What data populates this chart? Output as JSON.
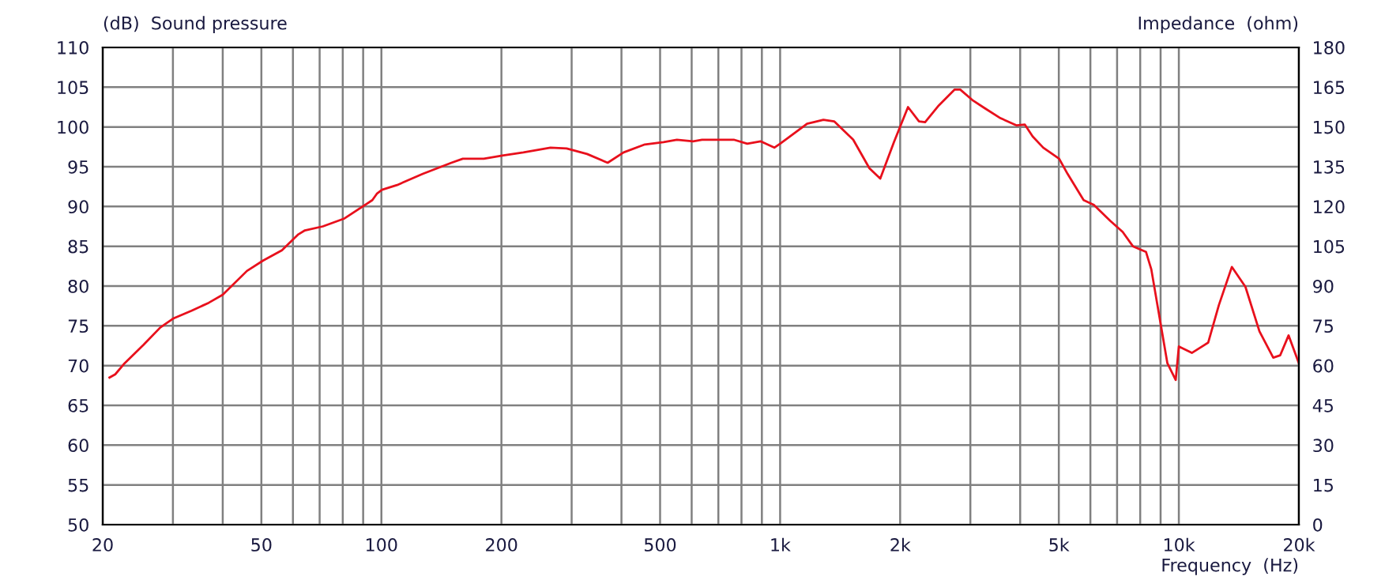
{
  "chart_data": {
    "type": "line",
    "ylabel": "(dB)  Sound pressure",
    "y2label": "Impedance  (ohm)",
    "xlabel": "Frequency  (Hz)",
    "log": "x",
    "grid": true,
    "legend": false,
    "xlim": [
      20,
      20000
    ],
    "ylim": [
      50,
      110
    ],
    "y2lim": [
      0,
      180
    ],
    "xticks": [
      20,
      {
        "value": 30,
        "label": null
      },
      {
        "value": 40,
        "label": null
      },
      50,
      {
        "value": 60,
        "label": null
      },
      {
        "value": 70,
        "label": null
      },
      {
        "value": 80,
        "label": null
      },
      {
        "value": 90,
        "label": null
      },
      100,
      200,
      {
        "value": 300,
        "label": null
      },
      {
        "value": 400,
        "label": null
      },
      500,
      {
        "value": 600,
        "label": null
      },
      {
        "value": 700,
        "label": null
      },
      {
        "value": 800,
        "label": null
      },
      {
        "value": 900,
        "label": null
      },
      {
        "value": 1000,
        "label": "1k"
      },
      {
        "value": 2000,
        "label": "2k"
      },
      {
        "value": 3000,
        "label": null
      },
      {
        "value": 4000,
        "label": null
      },
      {
        "value": 5000,
        "label": "5k"
      },
      {
        "value": 6000,
        "label": null
      },
      {
        "value": 7000,
        "label": null
      },
      {
        "value": 8000,
        "label": null
      },
      {
        "value": 9000,
        "label": null
      },
      {
        "value": 10000,
        "label": "10k"
      },
      {
        "value": 20000,
        "label": "20k"
      }
    ],
    "yticks": [
      50,
      55,
      60,
      65,
      70,
      75,
      80,
      85,
      90,
      95,
      100,
      105,
      110
    ],
    "y2ticks": [
      0,
      15,
      30,
      45,
      60,
      75,
      90,
      105,
      120,
      135,
      150,
      165,
      180
    ],
    "series": [
      {
        "color": "#e8101c",
        "x": [
          20.8,
          21.5,
          22.7,
          25.3,
          27.9,
          30,
          33.4,
          36.9,
          40,
          46,
          50.5,
          56.3,
          61.9,
          64.3,
          71.3,
          80.8,
          94.9,
          97.4,
          100.4,
          109.5,
          127,
          149.8,
          160,
          180.6,
          201,
          227,
          265.5,
          291.4,
          328,
          369.4,
          405,
          458,
          510,
          551,
          605,
          637,
          765,
          827,
          893,
          967,
          1000,
          1168,
          1284,
          1366,
          1525,
          1675,
          1783,
          1930,
          2093,
          2230,
          2310,
          2500,
          2740,
          2830,
          3050,
          3250,
          3570,
          3920,
          4110,
          4300,
          4570,
          5010,
          5260,
          5770,
          6120,
          6730,
          7230,
          7670,
          8270,
          8530,
          9360,
          9820,
          10000,
          10780,
          11850,
          12600,
          13580,
          14690,
          15930,
          17250,
          17960,
          18850,
          20000
        ],
        "values": [
          68.5,
          68.9,
          70.3,
          72.6,
          74.8,
          75.9,
          76.9,
          77.9,
          78.9,
          81.9,
          83.2,
          84.5,
          86.5,
          87.0,
          87.5,
          88.5,
          90.8,
          91.6,
          92.1,
          92.7,
          94.1,
          95.5,
          96.0,
          96.0,
          96.4,
          96.8,
          97.4,
          97.3,
          96.6,
          95.5,
          96.8,
          97.8,
          98.1,
          98.4,
          98.2,
          98.4,
          98.4,
          97.9,
          98.2,
          97.4,
          97.9,
          100.4,
          100.9,
          100.7,
          98.4,
          94.8,
          93.5,
          98.1,
          102.5,
          100.7,
          100.6,
          102.7,
          104.7,
          104.7,
          103.3,
          102.4,
          101.1,
          100.2,
          100.3,
          98.8,
          97.4,
          96.0,
          94.1,
          90.8,
          90.2,
          88.2,
          86.8,
          85.0,
          84.3,
          82.1,
          70.3,
          68.2,
          72.4,
          71.6,
          72.9,
          77.6,
          82.4,
          79.9,
          74.3,
          71.0,
          71.3,
          73.8,
          70.3
        ]
      }
    ]
  }
}
